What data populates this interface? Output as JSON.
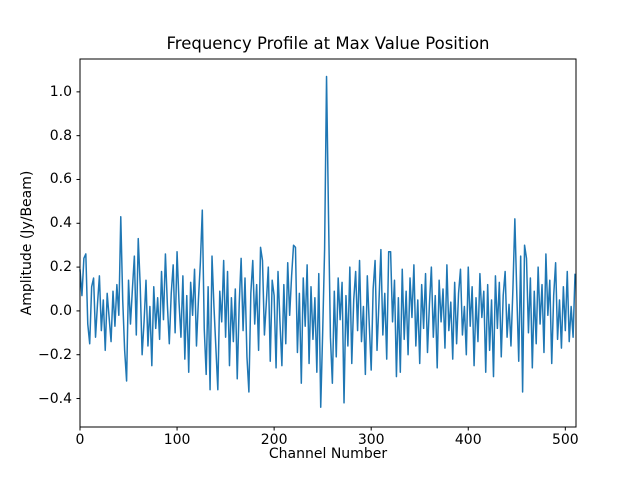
{
  "figure": {
    "background": "#ffffff",
    "title": "Frequency Profile at Max Value Position",
    "xlabel": "Channel Number",
    "ylabel": "Amplitude (Jy/Beam)"
  },
  "chart_data": {
    "type": "line",
    "title": "Frequency Profile at Max Value Position",
    "xlabel": "Channel Number",
    "ylabel": "Amplitude (Jy/Beam)",
    "line_color": "#1f77b4",
    "line_width": 1.5,
    "spine_color": "#000000",
    "grid": false,
    "legend": "none",
    "xlim": [
      0,
      511
    ],
    "ylim": [
      -0.53,
      1.15
    ],
    "xticks": {
      "values": [
        0,
        100,
        200,
        300,
        400,
        500
      ],
      "labels": [
        "0",
        "100",
        "200",
        "300",
        "400",
        "500"
      ]
    },
    "yticks": {
      "values": [
        -0.4,
        -0.2,
        0.0,
        0.2,
        0.4,
        0.6,
        0.8,
        1.0
      ],
      "labels": [
        "−0.4",
        "−0.2",
        "0.0",
        "0.2",
        "0.4",
        "0.6",
        "0.8",
        "1.0"
      ]
    },
    "peak": {
      "channel": 254,
      "amplitude": 1.07
    },
    "series": [
      {
        "name": "frequency-profile",
        "x_start": 0,
        "x_step": 2,
        "values": [
          0.19,
          0.07,
          0.24,
          0.26,
          -0.06,
          -0.15,
          0.11,
          0.15,
          -0.12,
          0.03,
          0.16,
          -0.09,
          0.05,
          -0.18,
          0.08,
          -0.03,
          -0.14,
          0.09,
          -0.07,
          0.12,
          -0.02,
          0.43,
          0.05,
          -0.18,
          -0.32,
          0.14,
          -0.06,
          0.1,
          0.25,
          -0.11,
          0.33,
          0.12,
          -0.2,
          -0.05,
          0.14,
          -0.16,
          0.02,
          -0.25,
          0.11,
          -0.08,
          0.06,
          -0.13,
          0.18,
          -0.04,
          0.26,
          0.03,
          -0.15,
          0.08,
          0.21,
          -0.1,
          0.27,
          0.04,
          -0.12,
          0.16,
          -0.22,
          0.07,
          -0.28,
          0.13,
          -0.02,
          0.19,
          -0.16,
          0.05,
          0.22,
          0.46,
          -0.08,
          -0.29,
          0.11,
          -0.36,
          0.25,
          0.02,
          -0.17,
          -0.36,
          0.09,
          -0.05,
          0.23,
          -0.12,
          0.18,
          -0.25,
          0.06,
          -0.14,
          0.1,
          -0.31,
          0.03,
          0.24,
          -0.09,
          0.15,
          -0.21,
          -0.37,
          0.08,
          0.23,
          -0.06,
          0.12,
          -0.18,
          0.29,
          0.23,
          -0.11,
          0.04,
          0.2,
          -0.23,
          0.14,
          0.07,
          -0.26,
          0.18,
          -0.05,
          -0.25,
          0.12,
          -0.15,
          0.22,
          -0.02,
          0.16,
          0.3,
          0.29,
          -0.19,
          0.08,
          -0.33,
          0.15,
          -0.07,
          0.21,
          -0.24,
          0.11,
          -0.13,
          0.06,
          -0.28,
          0.17,
          -0.44,
          -0.1,
          0.28,
          1.07,
          0.44,
          -0.12,
          -0.33,
          0.09,
          -0.21,
          0.15,
          -0.04,
          0.13,
          -0.42,
          0.07,
          -0.16,
          0.2,
          -0.24,
          0.05,
          0.18,
          -0.09,
          0.23,
          -0.14,
          0.02,
          -0.29,
          0.16,
          -0.06,
          -0.27,
          0.1,
          0.23,
          -0.18,
          0.04,
          0.28,
          -0.11,
          0.08,
          -0.22,
          0.27,
          0.27,
          -0.05,
          0.14,
          -0.3,
          0.06,
          -0.28,
          0.19,
          -0.13,
          0.09,
          -0.2,
          0.15,
          -0.03,
          0.21,
          -0.16,
          0.05,
          -0.24,
          0.12,
          -0.08,
          0.17,
          -0.19,
          0.03,
          0.2,
          -0.12,
          0.07,
          -0.26,
          0.14,
          -0.05,
          0.1,
          -0.17,
          0.21,
          -0.09,
          0.04,
          -0.22,
          0.13,
          -0.15,
          0.08,
          0.19,
          -0.11,
          0.02,
          -0.2,
          0.2,
          -0.07,
          0.11,
          -0.25,
          0.06,
          -0.14,
          0.17,
          -0.03,
          0.09,
          -0.28,
          0.12,
          -0.18,
          0.05,
          -0.3,
          0.16,
          -0.08,
          0.13,
          -0.21,
          0.07,
          0.18,
          -0.12,
          0.03,
          -0.16,
          0.1,
          0.42,
          0.08,
          -0.23,
          0.25,
          -0.37,
          0.3,
          0.24,
          -0.1,
          0.15,
          -0.26,
          0.09,
          -0.15,
          0.2,
          -0.06,
          0.12,
          -0.19,
          0.26,
          -0.02,
          0.14,
          -0.24,
          0.07,
          0.22,
          -0.13,
          0.05,
          -0.17,
          0.11,
          -0.09,
          0.18,
          -0.14,
          0.02,
          -0.12,
          0.17
        ]
      }
    ]
  }
}
